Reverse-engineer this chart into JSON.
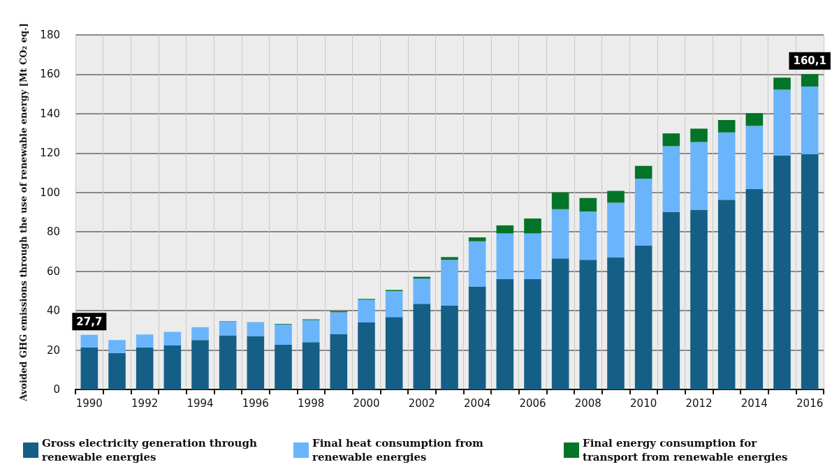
{
  "chart_data": {
    "type": "bar",
    "stacked": true,
    "ylabel": "Avoided GHG emissions through the use of renewable energy [Mt CO₂ eq.]",
    "categories": [
      "1990",
      null,
      "1992",
      null,
      "1994",
      null,
      "1996",
      null,
      "1998",
      null,
      "2000",
      null,
      "2002",
      null,
      "2004",
      null,
      "2006",
      null,
      "2008",
      null,
      "2010",
      null,
      "2012",
      null,
      "2014",
      null,
      "2016"
    ],
    "series": [
      {
        "name": "Gross electricity generation through renewable energies",
        "color": "#155f87",
        "values": [
          21.3,
          18.5,
          21.3,
          22.3,
          25.1,
          27.5,
          27.1,
          22.7,
          24.0,
          28.2,
          34.0,
          36.8,
          43.5,
          42.5,
          52.3,
          56.0,
          56.0,
          66.5,
          65.8,
          67.0,
          73.0,
          90.0,
          91.2,
          96.3,
          101.7,
          118.8,
          119.4
        ]
      },
      {
        "name": "Final heat consumption from renewable energies",
        "color": "#6ab4fc",
        "values": [
          6.4,
          6.6,
          6.6,
          6.9,
          6.5,
          6.9,
          7.1,
          10.3,
          11.2,
          11.0,
          11.5,
          13.1,
          12.8,
          23.3,
          22.9,
          23.2,
          23.2,
          25.0,
          24.5,
          27.8,
          34.0,
          33.5,
          34.4,
          34.2,
          32.1,
          33.4,
          34.4
        ]
      },
      {
        "name": "Final energy consumption for transport from renewable energies",
        "color": "#037428",
        "values": [
          0,
          0,
          0,
          0,
          0,
          0.2,
          null,
          0.3,
          0.4,
          0.5,
          0.5,
          0.6,
          0.9,
          1.4,
          2.0,
          4.1,
          7.6,
          8.5,
          6.9,
          6.0,
          6.5,
          6.5,
          6.8,
          6.3,
          6.5,
          6.1,
          6.3
        ]
      }
    ],
    "ylim": [
      0,
      180
    ],
    "yticks": [
      0,
      20,
      40,
      60,
      80,
      100,
      120,
      140,
      160,
      180
    ],
    "grid": true,
    "legend": "bottom",
    "annotations": [
      {
        "text": "27,7",
        "x": "1990",
        "y": 27.7
      },
      {
        "text": "160,1",
        "x": "2016",
        "y": 160.1
      }
    ]
  }
}
